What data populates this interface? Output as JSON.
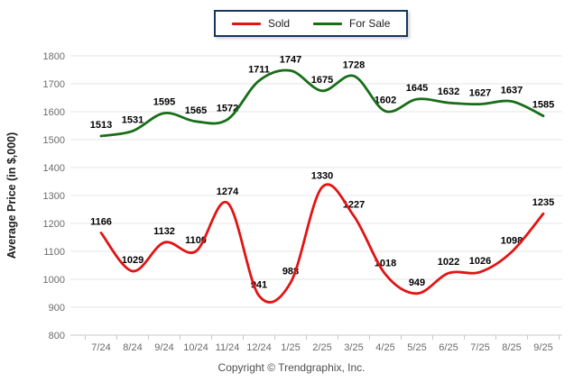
{
  "chart_data": {
    "type": "line",
    "title": "",
    "xlabel": "",
    "ylabel": "Average Price (in $,000)",
    "categories": [
      "7/24",
      "8/24",
      "9/24",
      "10/24",
      "11/24",
      "12/24",
      "1/25",
      "2/25",
      "3/25",
      "4/25",
      "5/25",
      "6/25",
      "7/25",
      "8/25",
      "9/25"
    ],
    "series": [
      {
        "name": "Sold",
        "color": "#e11414",
        "values": [
          1166,
          1029,
          1132,
          1100,
          1274,
          941,
          988,
          1330,
          1227,
          1018,
          949,
          1022,
          1026,
          1098,
          1235
        ]
      },
      {
        "name": "For Sale",
        "color": "#176e17",
        "values": [
          1513,
          1531,
          1595,
          1565,
          1572,
          1711,
          1747,
          1675,
          1728,
          1602,
          1645,
          1632,
          1627,
          1637,
          1585
        ]
      }
    ],
    "ylim": [
      800,
      1800
    ],
    "ytick_step": 100,
    "grid": "horizontal",
    "smooth": true,
    "data_labels": true,
    "legend_position": "top-center"
  },
  "legend": {
    "border_color": "#17375e",
    "items": [
      {
        "label": "Sold",
        "color": "#e11414"
      },
      {
        "label": "For Sale",
        "color": "#176e17"
      }
    ]
  },
  "footer": {
    "copyright": "Copyright © Trendgraphix, Inc."
  },
  "colors": {
    "gridline": "#e4e4e4",
    "axis_line": "#c9c9c9",
    "tick_label": "#6b6b6b",
    "data_label": "#000000",
    "background": "#ffffff"
  }
}
